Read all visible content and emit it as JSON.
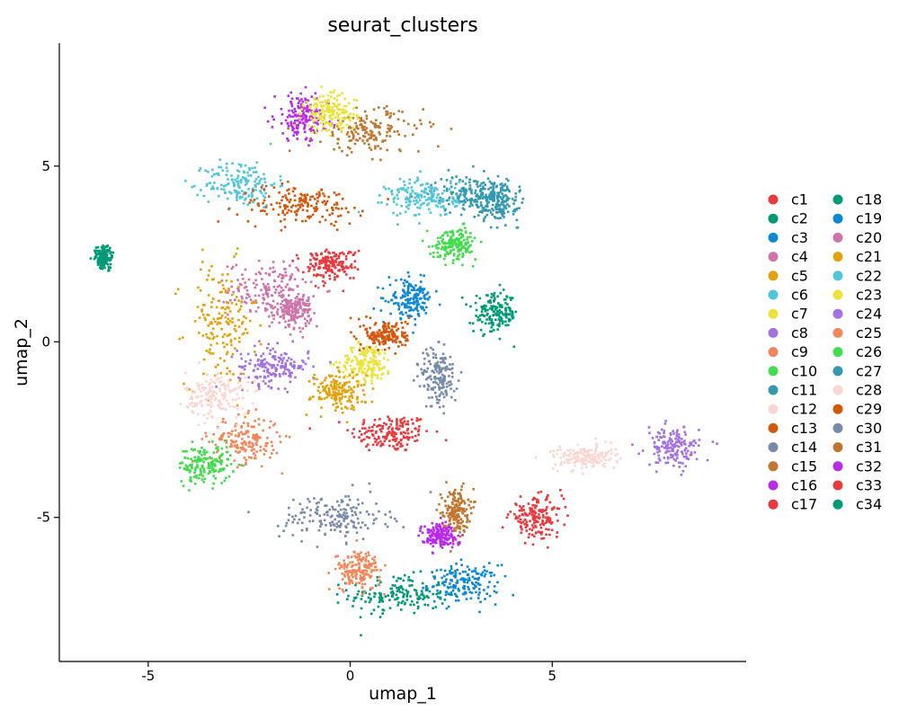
{
  "chart_data": {
    "type": "scatter",
    "title": "seurat_clusters",
    "xlabel": "umap_1",
    "ylabel": "umap_2",
    "xlim": [
      -7.2,
      9.8
    ],
    "ylim": [
      -9.1,
      8.5
    ],
    "x_ticks": [
      -5,
      0,
      5
    ],
    "y_ticks": [
      5,
      0,
      -5
    ],
    "x_tick_labels": [
      "-5",
      "0",
      "5"
    ],
    "y_tick_labels": [
      "5",
      "0",
      "-5"
    ],
    "grid": false,
    "legend_placement": "right",
    "legend_columns": 2,
    "series": [
      {
        "name": "c1",
        "color": "#e8393d",
        "center": [
          1.0,
          -2.6
        ],
        "spread": [
          0.9,
          0.5
        ]
      },
      {
        "name": "c2",
        "color": "#019a77",
        "center": [
          1.2,
          -7.2
        ],
        "spread": [
          1.1,
          0.5
        ]
      },
      {
        "name": "c3",
        "color": "#0e88d3",
        "center": [
          2.8,
          -6.9
        ],
        "spread": [
          0.8,
          0.5
        ]
      },
      {
        "name": "c4",
        "color": "#cf74aa",
        "center": [
          -2.0,
          1.5
        ],
        "spread": [
          0.9,
          0.7
        ]
      },
      {
        "name": "c5",
        "color": "#e1a20c",
        "center": [
          -3.2,
          0.5
        ],
        "spread": [
          0.8,
          1.6
        ]
      },
      {
        "name": "c6",
        "color": "#52c6d9",
        "center": [
          -2.7,
          4.5
        ],
        "spread": [
          0.8,
          0.6
        ]
      },
      {
        "name": "c7",
        "color": "#ebe33b",
        "center": [
          0.4,
          -0.6
        ],
        "spread": [
          0.6,
          0.5
        ]
      },
      {
        "name": "c8",
        "color": "#a371e0",
        "center": [
          -1.9,
          -0.7
        ],
        "spread": [
          0.8,
          0.5
        ]
      },
      {
        "name": "c9",
        "color": "#f4875a",
        "center": [
          -2.6,
          -2.8
        ],
        "spread": [
          0.8,
          0.6
        ]
      },
      {
        "name": "c10",
        "color": "#42dc4c",
        "center": [
          -3.6,
          -3.5
        ],
        "spread": [
          0.6,
          0.5
        ]
      },
      {
        "name": "c11",
        "color": "#3498b1",
        "center": [
          3.0,
          4.2
        ],
        "spread": [
          0.9,
          0.5
        ]
      },
      {
        "name": "c12",
        "color": "#fbd6d2",
        "center": [
          -3.3,
          -1.5
        ],
        "spread": [
          0.7,
          0.6
        ]
      },
      {
        "name": "c13",
        "color": "#d4580c",
        "center": [
          -1.2,
          3.9
        ],
        "spread": [
          1.4,
          0.5
        ]
      },
      {
        "name": "c14",
        "color": "#778aa8",
        "center": [
          -0.4,
          -5.0
        ],
        "spread": [
          1.2,
          0.6
        ]
      },
      {
        "name": "c15",
        "color": "#c0762f",
        "center": [
          0.5,
          6.0
        ],
        "spread": [
          1.2,
          0.6
        ]
      },
      {
        "name": "c16",
        "color": "#b72be9",
        "center": [
          -1.2,
          6.4
        ],
        "spread": [
          0.6,
          0.6
        ]
      },
      {
        "name": "c17",
        "color": "#e8393d",
        "center": [
          4.6,
          -5.0
        ],
        "spread": [
          0.6,
          0.5
        ]
      },
      {
        "name": "c18",
        "color": "#019a77",
        "center": [
          3.6,
          0.8
        ],
        "spread": [
          0.5,
          0.5
        ]
      },
      {
        "name": "c19",
        "color": "#0e88d3",
        "center": [
          1.5,
          1.2
        ],
        "spread": [
          0.5,
          0.5
        ]
      },
      {
        "name": "c20",
        "color": "#cf74aa",
        "center": [
          -1.4,
          0.9
        ],
        "spread": [
          0.4,
          0.4
        ]
      },
      {
        "name": "c21",
        "color": "#e1a20c",
        "center": [
          -0.3,
          -1.4
        ],
        "spread": [
          0.6,
          0.5
        ]
      },
      {
        "name": "c22",
        "color": "#52c6d9",
        "center": [
          1.8,
          4.1
        ],
        "spread": [
          0.8,
          0.5
        ]
      },
      {
        "name": "c23",
        "color": "#ebe33b",
        "center": [
          -0.5,
          6.5
        ],
        "spread": [
          0.6,
          0.5
        ]
      },
      {
        "name": "c24",
        "color": "#a371e0",
        "center": [
          8.0,
          -3.0
        ],
        "spread": [
          0.6,
          0.5
        ]
      },
      {
        "name": "c25",
        "color": "#f4875a",
        "center": [
          0.2,
          -6.5
        ],
        "spread": [
          0.5,
          0.5
        ]
      },
      {
        "name": "c26",
        "color": "#42dc4c",
        "center": [
          2.6,
          2.8
        ],
        "spread": [
          0.5,
          0.4
        ]
      },
      {
        "name": "c27",
        "color": "#3498b1",
        "center": [
          3.6,
          4.0
        ],
        "spread": [
          0.5,
          0.5
        ]
      },
      {
        "name": "c28",
        "color": "#fbd6d2",
        "center": [
          5.8,
          -3.3
        ],
        "spread": [
          0.7,
          0.3
        ]
      },
      {
        "name": "c29",
        "color": "#d4580c",
        "center": [
          0.9,
          0.2
        ],
        "spread": [
          0.5,
          0.4
        ]
      },
      {
        "name": "c30",
        "color": "#778aa8",
        "center": [
          2.2,
          -1.0
        ],
        "spread": [
          0.4,
          0.8
        ]
      },
      {
        "name": "c31",
        "color": "#c0762f",
        "center": [
          2.6,
          -4.8
        ],
        "spread": [
          0.3,
          0.6
        ]
      },
      {
        "name": "c32",
        "color": "#b72be9",
        "center": [
          2.2,
          -5.5
        ],
        "spread": [
          0.4,
          0.3
        ]
      },
      {
        "name": "c33",
        "color": "#e8393d",
        "center": [
          -0.5,
          2.2
        ],
        "spread": [
          0.6,
          0.4
        ]
      },
      {
        "name": "c34",
        "color": "#019a77",
        "center": [
          -6.1,
          2.4
        ],
        "spread": [
          0.2,
          0.3
        ]
      }
    ]
  }
}
